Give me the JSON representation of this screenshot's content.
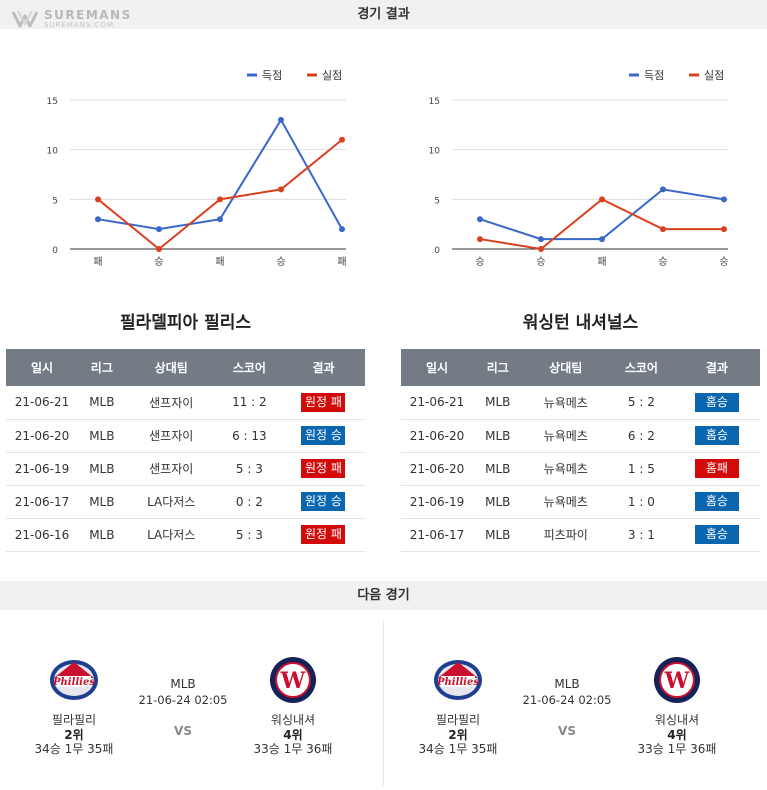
{
  "header": {
    "title": "경기 결과",
    "brand": "SUREMANS",
    "brand_sub": "SUREMANS.COM"
  },
  "colors": {
    "score": "#3a68c9",
    "conceded": "#d9401e",
    "win": "#0b66b0",
    "loss": "#d20a0a"
  },
  "legend": {
    "scored": "득점",
    "conceded": "실점"
  },
  "charts": [
    {
      "type": "line",
      "yticks": [
        "15",
        "10",
        "5",
        "0"
      ],
      "categories": [
        "패",
        "승",
        "패",
        "승",
        "패"
      ],
      "ylim": [
        0,
        15
      ],
      "series": [
        {
          "name": "득점",
          "values": [
            3,
            2,
            3,
            13,
            2
          ]
        },
        {
          "name": "실점",
          "values": [
            5,
            0,
            5,
            6,
            11
          ]
        }
      ]
    },
    {
      "type": "line",
      "yticks": [
        "15",
        "10",
        "5",
        "0"
      ],
      "categories": [
        "승",
        "승",
        "패",
        "승",
        "승"
      ],
      "ylim": [
        0,
        15
      ],
      "series": [
        {
          "name": "득점",
          "values": [
            3,
            1,
            1,
            6,
            5
          ]
        },
        {
          "name": "실점",
          "values": [
            1,
            0,
            5,
            2,
            2
          ]
        }
      ]
    }
  ],
  "chart_data": [
    {
      "type": "line",
      "categories": [
        "패",
        "승",
        "패",
        "승",
        "패"
      ],
      "ylim": [
        0,
        15
      ],
      "series": [
        {
          "name": "득점",
          "values": [
            3,
            2,
            3,
            13,
            2
          ]
        },
        {
          "name": "실점",
          "values": [
            5,
            0,
            5,
            6,
            11
          ]
        }
      ]
    },
    {
      "type": "line",
      "categories": [
        "승",
        "승",
        "패",
        "승",
        "승"
      ],
      "ylim": [
        0,
        15
      ],
      "series": [
        {
          "name": "득점",
          "values": [
            3,
            1,
            1,
            6,
            5
          ]
        },
        {
          "name": "실점",
          "values": [
            1,
            0,
            5,
            2,
            2
          ]
        }
      ]
    }
  ],
  "teams": {
    "left": {
      "title": "필라델피아 필리스",
      "columns": [
        "일시",
        "리그",
        "상대팀",
        "스코어",
        "결과"
      ],
      "rows": [
        {
          "date": "21-06-21",
          "league": "MLB",
          "opponent": "샌프자이",
          "score": "11 : 2",
          "result": "원정 패",
          "color": "red"
        },
        {
          "date": "21-06-20",
          "league": "MLB",
          "opponent": "샌프자이",
          "score": "6 : 13",
          "result": "원정 승",
          "color": "blue"
        },
        {
          "date": "21-06-19",
          "league": "MLB",
          "opponent": "샌프자이",
          "score": "5 : 3",
          "result": "원정 패",
          "color": "red"
        },
        {
          "date": "21-06-17",
          "league": "MLB",
          "opponent": "LA다저스",
          "score": "0 : 2",
          "result": "원정 승",
          "color": "blue"
        },
        {
          "date": "21-06-16",
          "league": "MLB",
          "opponent": "LA다저스",
          "score": "5 : 3",
          "result": "원정 패",
          "color": "red"
        }
      ]
    },
    "right": {
      "title": "워싱턴 내셔널스",
      "columns": [
        "일시",
        "리그",
        "상대팀",
        "스코어",
        "결과"
      ],
      "rows": [
        {
          "date": "21-06-21",
          "league": "MLB",
          "opponent": "뉴욕메츠",
          "score": "5 : 2",
          "result": "홈승",
          "color": "blue"
        },
        {
          "date": "21-06-20",
          "league": "MLB",
          "opponent": "뉴욕메츠",
          "score": "6 : 2",
          "result": "홈승",
          "color": "blue"
        },
        {
          "date": "21-06-20",
          "league": "MLB",
          "opponent": "뉴욕메츠",
          "score": "1 : 5",
          "result": "홈패",
          "color": "red"
        },
        {
          "date": "21-06-19",
          "league": "MLB",
          "opponent": "뉴욕메츠",
          "score": "1 : 0",
          "result": "홈승",
          "color": "blue"
        },
        {
          "date": "21-06-17",
          "league": "MLB",
          "opponent": "피츠파이",
          "score": "3 : 1",
          "result": "홈승",
          "color": "blue"
        }
      ]
    }
  },
  "next": {
    "title": "다음 경기",
    "matches": [
      {
        "league": "MLB",
        "datetime": "21-06-24 02:05",
        "vs": "VS",
        "home": {
          "name": "필라필리",
          "rank": "2위",
          "record": "34승 1무 35패",
          "logo_text": "Phillies"
        },
        "away": {
          "name": "워싱내셔",
          "rank": "4위",
          "record": "33승 1무 36패",
          "logo_text": "W"
        }
      },
      {
        "league": "MLB",
        "datetime": "21-06-24 02:05",
        "vs": "VS",
        "home": {
          "name": "필라필리",
          "rank": "2위",
          "record": "34승 1무 35패",
          "logo_text": "Phillies"
        },
        "away": {
          "name": "워싱내셔",
          "rank": "4위",
          "record": "33승 1무 36패",
          "logo_text": "W"
        }
      }
    ]
  }
}
